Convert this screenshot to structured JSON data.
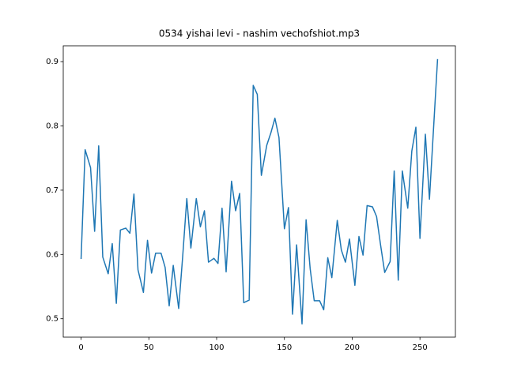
{
  "chart_data": {
    "type": "line",
    "title": "0534 yishai levi - nashim vechofshiot.mp3",
    "x": [
      0,
      3,
      7,
      10,
      13,
      16,
      20,
      23,
      26,
      29,
      33,
      36,
      39,
      42,
      46,
      49,
      52,
      55,
      59,
      62,
      65,
      68,
      72,
      75,
      78,
      81,
      85,
      88,
      91,
      94,
      98,
      101,
      104,
      107,
      111,
      114,
      117,
      120,
      124,
      127,
      130,
      133,
      137,
      140,
      143,
      146,
      150,
      153,
      156,
      159,
      163,
      166,
      169,
      172,
      176,
      179,
      182,
      185,
      189,
      192,
      195,
      198,
      202,
      205,
      208,
      211,
      215,
      218,
      221,
      224,
      228,
      231,
      234,
      237,
      241,
      244,
      247,
      250,
      254,
      257,
      260,
      263
    ],
    "values": [
      0.593,
      0.763,
      0.735,
      0.636,
      0.769,
      0.596,
      0.57,
      0.617,
      0.524,
      0.638,
      0.641,
      0.633,
      0.694,
      0.576,
      0.541,
      0.622,
      0.571,
      0.602,
      0.602,
      0.58,
      0.52,
      0.583,
      0.516,
      0.598,
      0.687,
      0.61,
      0.687,
      0.643,
      0.668,
      0.588,
      0.594,
      0.586,
      0.672,
      0.573,
      0.714,
      0.668,
      0.695,
      0.525,
      0.529,
      0.863,
      0.849,
      0.723,
      0.77,
      0.789,
      0.812,
      0.782,
      0.64,
      0.673,
      0.507,
      0.615,
      0.492,
      0.654,
      0.578,
      0.528,
      0.528,
      0.514,
      0.595,
      0.564,
      0.653,
      0.607,
      0.588,
      0.624,
      0.552,
      0.628,
      0.599,
      0.676,
      0.674,
      0.659,
      0.614,
      0.572,
      0.589,
      0.73,
      0.56,
      0.73,
      0.672,
      0.761,
      0.798,
      0.625,
      0.787,
      0.686,
      0.795,
      0.904
    ],
    "color": "#1f77b4",
    "xlim": [
      -13.15,
      276.15
    ],
    "xticks": [
      0,
      50,
      100,
      150,
      200,
      250
    ],
    "ylim": [
      0.4714,
      0.9246
    ],
    "yticks": [
      0.5,
      0.6,
      0.7,
      0.8,
      0.9
    ]
  }
}
